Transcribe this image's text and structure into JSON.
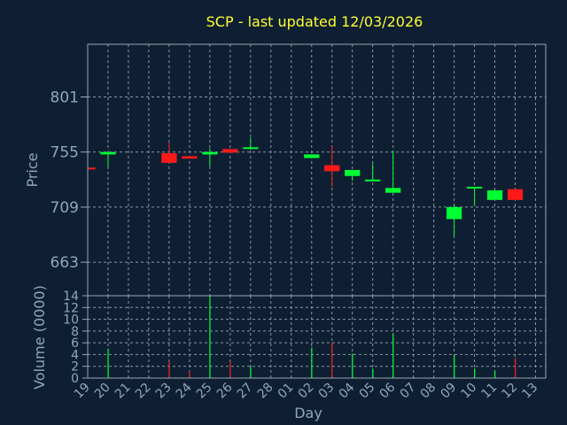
{
  "chart_data": [
    {
      "type": "candlestick",
      "title": "SCP - last updated 12/03/2026",
      "ylabel": "Price",
      "yticks": [
        663,
        709,
        755,
        801
      ],
      "ylim": [
        635,
        845
      ],
      "colors": {
        "up": "#00ff33",
        "down": "#ff1a1a"
      },
      "grid": true,
      "categories": [
        "19",
        "20",
        "21",
        "22",
        "23",
        "24",
        "25",
        "26",
        "27",
        "28",
        "01",
        "02",
        "03",
        "04",
        "05",
        "06",
        "07",
        "08",
        "09",
        "10",
        "11",
        "12",
        "13"
      ],
      "candles": [
        {
          "day": "19",
          "open": 742.0,
          "close": 740.5,
          "high": 742.0,
          "low": 740.5
        },
        {
          "day": "20",
          "open": 753.0,
          "close": 755.0,
          "high": 755.0,
          "low": 743.0
        },
        {
          "day": "23",
          "open": 754.0,
          "close": 746.0,
          "high": 763.0,
          "low": 746.0
        },
        {
          "day": "24",
          "open": 751.5,
          "close": 749.5,
          "high": 751.5,
          "low": 749.5
        },
        {
          "day": "25",
          "open": 753.0,
          "close": 755.0,
          "high": 758.0,
          "low": 743.0
        },
        {
          "day": "26",
          "open": 757.5,
          "close": 754.5,
          "high": 757.5,
          "low": 754.5
        },
        {
          "day": "27",
          "open": 758.0,
          "close": 759.0,
          "high": 767.0,
          "low": 757.0
        },
        {
          "day": "02",
          "open": 750.0,
          "close": 753.0,
          "high": 753.0,
          "low": 750.0
        },
        {
          "day": "03",
          "open": 744.0,
          "close": 739.0,
          "high": 760.0,
          "low": 726.0
        },
        {
          "day": "04",
          "open": 735.0,
          "close": 740.0,
          "high": 740.0,
          "low": 731.0
        },
        {
          "day": "05",
          "open": 731.0,
          "close": 732.0,
          "high": 745.0,
          "low": 731.0
        },
        {
          "day": "06",
          "open": 721.0,
          "close": 725.0,
          "high": 756.0,
          "low": 721.0
        },
        {
          "day": "09",
          "open": 699.0,
          "close": 709.0,
          "high": 711.0,
          "low": 685.0
        },
        {
          "day": "10",
          "open": 725.0,
          "close": 726.0,
          "high": 726.0,
          "low": 711.0
        },
        {
          "day": "11",
          "open": 715.0,
          "close": 723.0,
          "high": 724.0,
          "low": 715.0
        },
        {
          "day": "12",
          "open": 724.0,
          "close": 715.0,
          "high": 724.0,
          "low": 715.0
        }
      ]
    },
    {
      "type": "bar",
      "ylabel": "Volume (0000)",
      "xlabel": "Day",
      "yticks": [
        0,
        2,
        4,
        6,
        8,
        10,
        12,
        14
      ],
      "ylim": [
        0,
        14
      ],
      "grid": true,
      "categories": [
        "19",
        "20",
        "21",
        "22",
        "23",
        "24",
        "25",
        "26",
        "27",
        "28",
        "01",
        "02",
        "03",
        "04",
        "05",
        "06",
        "07",
        "08",
        "09",
        "10",
        "11",
        "12",
        "13"
      ],
      "bars": [
        {
          "day": "20",
          "value": 5.0,
          "dir": "up"
        },
        {
          "day": "23",
          "value": 2.8,
          "dir": "down"
        },
        {
          "day": "24",
          "value": 1.2,
          "dir": "down"
        },
        {
          "day": "25",
          "value": 14.0,
          "dir": "up"
        },
        {
          "day": "26",
          "value": 2.8,
          "dir": "down"
        },
        {
          "day": "27",
          "value": 2.0,
          "dir": "up"
        },
        {
          "day": "02",
          "value": 5.2,
          "dir": "up"
        },
        {
          "day": "03",
          "value": 6.0,
          "dir": "down"
        },
        {
          "day": "04",
          "value": 4.2,
          "dir": "up"
        },
        {
          "day": "05",
          "value": 1.6,
          "dir": "up"
        },
        {
          "day": "06",
          "value": 7.5,
          "dir": "up"
        },
        {
          "day": "09",
          "value": 3.9,
          "dir": "up"
        },
        {
          "day": "10",
          "value": 1.6,
          "dir": "up"
        },
        {
          "day": "11",
          "value": 1.2,
          "dir": "up"
        },
        {
          "day": "12",
          "value": 3.4,
          "dir": "down"
        }
      ]
    }
  ]
}
